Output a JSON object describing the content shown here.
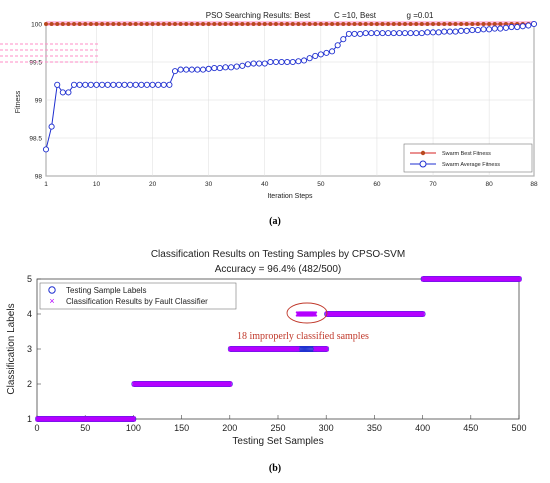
{
  "panel_a": {
    "caption": "(a)",
    "title": "PSO Searching Results: Best",
    "title_c": "C =10, Best",
    "title_g": "g =0.01",
    "xlabel": "Iteration Steps",
    "ylabel": "Fitness",
    "legend": {
      "best": "Swarm Best Fitness",
      "avg": "Swarm Average Fitness"
    },
    "colors": {
      "best": "#b84a1f",
      "best_line": "#d62020",
      "avg": "#1f2fd0",
      "highlight": "#ff8ec8"
    }
  },
  "panel_b": {
    "caption": "(b)",
    "title": "Classification Results on Testing Samples by CPSO-SVM",
    "subtitle": "Accuracy = 96.4% (482/500)",
    "xlabel": "Testing Set Samples",
    "ylabel": "Classification Labels",
    "legend": {
      "labels": "Testing Sample Labels",
      "results": "Classification Results by Fault Classifier"
    },
    "annotation": "18 improperly classified samples",
    "colors": {
      "labels": "#1f2fd0",
      "results": "#b400ff",
      "annotation": "#c0392b"
    }
  },
  "chart_data": [
    {
      "type": "line",
      "title": "PSO Searching Results: Best",
      "xlabel": "Iteration Steps",
      "ylabel": "Fitness",
      "xlim": [
        1,
        88
      ],
      "ylim": [
        98,
        100
      ],
      "xticks": [
        1,
        10,
        20,
        30,
        40,
        50,
        60,
        70,
        80,
        88
      ],
      "yticks": [
        98,
        98.5,
        99,
        99.5,
        100
      ],
      "grid": true,
      "legend_position": "bottom-right",
      "series": [
        {
          "name": "Swarm Best Fitness",
          "x": [
            1,
            2,
            3,
            4,
            5,
            6,
            7,
            8,
            9,
            10,
            11,
            12,
            13,
            14,
            15,
            16,
            17,
            18,
            19,
            20,
            21,
            22,
            23,
            24,
            25,
            26,
            27,
            28,
            29,
            30,
            31,
            32,
            33,
            34,
            35,
            36,
            37,
            38,
            39,
            40,
            41,
            42,
            43,
            44,
            45,
            46,
            47,
            48,
            49,
            50,
            51,
            52,
            53,
            54,
            55,
            56,
            57,
            58,
            59,
            60,
            61,
            62,
            63,
            64,
            65,
            66,
            67,
            68,
            69,
            70,
            71,
            72,
            73,
            74,
            75,
            76,
            77,
            78,
            79,
            80,
            81,
            82,
            83,
            84,
            85,
            86,
            87,
            88
          ],
          "y": [
            100,
            100,
            100,
            100,
            100,
            100,
            100,
            100,
            100,
            100,
            100,
            100,
            100,
            100,
            100,
            100,
            100,
            100,
            100,
            100,
            100,
            100,
            100,
            100,
            100,
            100,
            100,
            100,
            100,
            100,
            100,
            100,
            100,
            100,
            100,
            100,
            100,
            100,
            100,
            100,
            100,
            100,
            100,
            100,
            100,
            100,
            100,
            100,
            100,
            100,
            100,
            100,
            100,
            100,
            100,
            100,
            100,
            100,
            100,
            100,
            100,
            100,
            100,
            100,
            100,
            100,
            100,
            100,
            100,
            100,
            100,
            100,
            100,
            100,
            100,
            100,
            100,
            100,
            100,
            100,
            100,
            100,
            100,
            100,
            100,
            100,
            100,
            100
          ]
        },
        {
          "name": "Swarm Average Fitness",
          "x": [
            1,
            2,
            3,
            4,
            5,
            6,
            7,
            8,
            9,
            10,
            11,
            12,
            13,
            14,
            15,
            16,
            17,
            18,
            19,
            20,
            21,
            22,
            23,
            24,
            25,
            26,
            27,
            28,
            29,
            30,
            31,
            32,
            33,
            34,
            35,
            36,
            37,
            38,
            39,
            40,
            41,
            42,
            43,
            44,
            45,
            46,
            47,
            48,
            49,
            50,
            51,
            52,
            53,
            54,
            55,
            56,
            57,
            58,
            59,
            60,
            61,
            62,
            63,
            64,
            65,
            66,
            67,
            68,
            69,
            70,
            71,
            72,
            73,
            74,
            75,
            76,
            77,
            78,
            79,
            80,
            81,
            82,
            83,
            84,
            85,
            86,
            87,
            88
          ],
          "y": [
            98.35,
            98.65,
            99.2,
            99.1,
            99.1,
            99.2,
            99.2,
            99.2,
            99.2,
            99.2,
            99.2,
            99.2,
            99.2,
            99.2,
            99.2,
            99.2,
            99.2,
            99.2,
            99.2,
            99.2,
            99.2,
            99.2,
            99.2,
            99.38,
            99.4,
            99.4,
            99.4,
            99.4,
            99.4,
            99.41,
            99.42,
            99.42,
            99.43,
            99.43,
            99.44,
            99.45,
            99.47,
            99.48,
            99.48,
            99.48,
            99.5,
            99.5,
            99.5,
            99.5,
            99.5,
            99.51,
            99.52,
            99.55,
            99.58,
            99.6,
            99.62,
            99.64,
            99.72,
            99.8,
            99.87,
            99.87,
            99.87,
            99.88,
            99.88,
            99.88,
            99.88,
            99.88,
            99.88,
            99.88,
            99.88,
            99.88,
            99.88,
            99.88,
            99.89,
            99.89,
            99.89,
            99.9,
            99.9,
            99.9,
            99.91,
            99.91,
            99.92,
            99.92,
            99.93,
            99.93,
            99.94,
            99.94,
            99.95,
            99.96,
            99.96,
            99.97,
            99.98,
            100.0
          ]
        }
      ]
    },
    {
      "type": "scatter",
      "title": "Classification Results on Testing Samples by CPSO-SVM",
      "subtitle": "Accuracy = 96.4% (482/500)",
      "xlabel": "Testing Set Samples",
      "ylabel": "Classification Labels",
      "xlim": [
        0,
        500
      ],
      "ylim": [
        1,
        5
      ],
      "xticks": [
        0,
        50,
        100,
        150,
        200,
        250,
        300,
        350,
        400,
        450,
        500
      ],
      "yticks": [
        1,
        2,
        3,
        4,
        5
      ],
      "grid": false,
      "legend_position": "top-left",
      "series": [
        {
          "name": "Testing Sample Labels",
          "segments": [
            {
              "x_from": 1,
              "x_to": 100,
              "label": 1
            },
            {
              "x_from": 101,
              "x_to": 200,
              "label": 2
            },
            {
              "x_from": 201,
              "x_to": 300,
              "label": 3
            },
            {
              "x_from": 301,
              "x_to": 400,
              "label": 4
            },
            {
              "x_from": 401,
              "x_to": 500,
              "label": 5
            }
          ]
        },
        {
          "name": "Classification Results by Fault Classifier",
          "segments": [
            {
              "x_from": 1,
              "x_to": 100,
              "label": 1
            },
            {
              "x_from": 101,
              "x_to": 200,
              "label": 2
            },
            {
              "x_from": 201,
              "x_to": 270,
              "label": 3
            },
            {
              "x_from": 271,
              "x_to": 288,
              "label": 4
            },
            {
              "x_from": 289,
              "x_to": 300,
              "label": 3
            },
            {
              "x_from": 301,
              "x_to": 400,
              "label": 4
            },
            {
              "x_from": 401,
              "x_to": 500,
              "label": 5
            }
          ]
        }
      ],
      "annotation": "18 improperly classified samples"
    }
  ]
}
